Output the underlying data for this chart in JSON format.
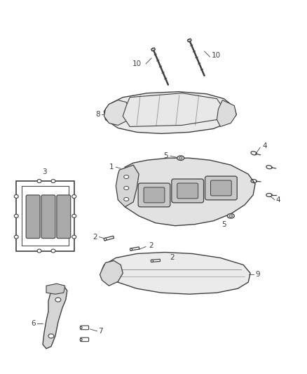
{
  "bg_color": "#ffffff",
  "line_color": "#404040",
  "figsize": [
    4.38,
    5.33
  ],
  "dpi": 100,
  "part_fill": "#f0f0f0",
  "part_fill_dark": "#d8d8d8",
  "part_stroke": "#404040"
}
